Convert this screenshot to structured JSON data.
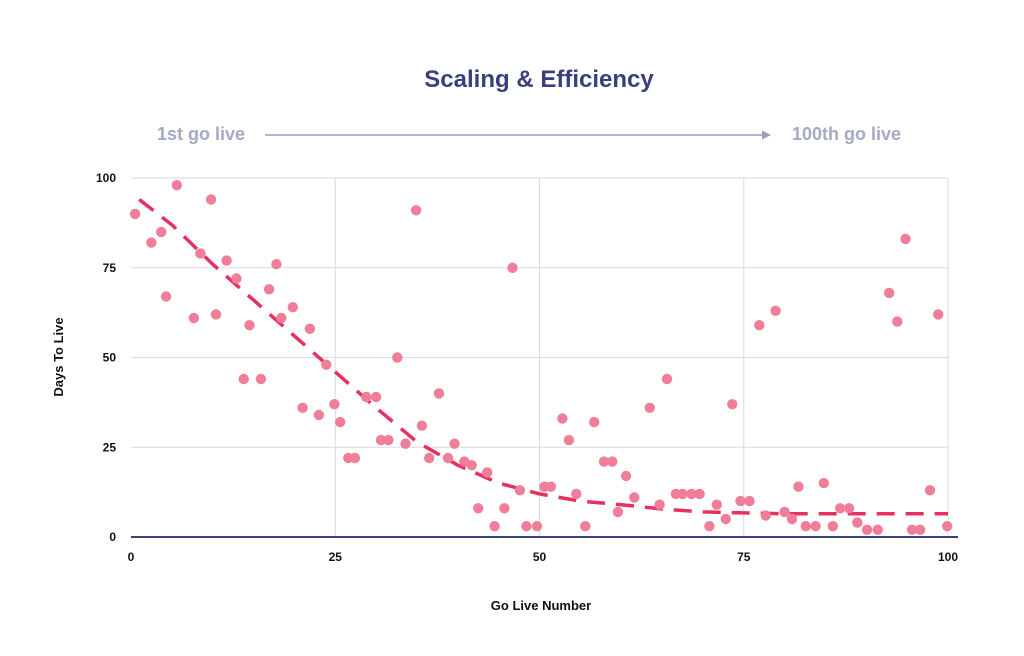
{
  "chart_data": {
    "type": "scatter",
    "title": "Scaling & Efficiency",
    "journey": {
      "start_label": "1st go live",
      "end_label": "100th go live"
    },
    "xlabel": "Go Live Number",
    "ylabel": "Days To Live",
    "xlim": [
      0,
      100
    ],
    "ylim": [
      0,
      100
    ],
    "xticks": [
      0,
      25,
      50,
      75,
      100
    ],
    "yticks": [
      0,
      25,
      50,
      75,
      100
    ],
    "grid": true,
    "series": [
      {
        "name": "Go lives",
        "kind": "scatter",
        "x": [
          0.5,
          2.5,
          3.7,
          4.3,
          5.6,
          7.7,
          8.5,
          9.8,
          10.4,
          11.7,
          12.9,
          13.8,
          14.5,
          15.9,
          16.9,
          17.8,
          18.4,
          19.8,
          21.0,
          21.9,
          23.0,
          23.9,
          24.9,
          25.6,
          26.6,
          27.4,
          28.8,
          30.0,
          30.6,
          31.5,
          32.6,
          33.6,
          34.9,
          35.6,
          36.5,
          37.7,
          38.8,
          39.6,
          40.8,
          41.7,
          42.5,
          43.6,
          44.5,
          45.7,
          46.7,
          47.6,
          48.4,
          49.7,
          50.6,
          51.4,
          52.8,
          53.6,
          54.5,
          55.6,
          56.7,
          57.9,
          58.9,
          59.6,
          60.6,
          61.6,
          63.5,
          64.7,
          65.6,
          66.7,
          67.5,
          68.6,
          69.6,
          70.8,
          71.7,
          72.8,
          73.6,
          74.6,
          75.7,
          76.9,
          77.7,
          78.9,
          80.0,
          80.9,
          81.7,
          82.6,
          83.8,
          84.8,
          85.9,
          86.8,
          87.9,
          88.9,
          90.1,
          91.4,
          92.8,
          93.8,
          94.8,
          95.6,
          96.6,
          97.8,
          98.8,
          99.9
        ],
        "y": [
          90,
          82,
          85,
          67,
          98,
          61,
          79,
          94,
          62,
          77,
          72,
          44,
          59,
          44,
          69,
          76,
          61,
          64,
          36,
          58,
          34,
          48,
          37,
          32,
          22,
          22,
          39,
          39,
          27,
          27,
          50,
          26,
          91,
          31,
          22,
          40,
          22,
          26,
          21,
          20,
          8,
          18,
          3,
          8,
          75,
          13,
          3,
          3,
          14,
          14,
          33,
          27,
          12,
          3,
          32,
          21,
          21,
          7,
          17,
          11,
          36,
          9,
          44,
          12,
          12,
          12,
          12,
          3,
          9,
          5,
          37,
          10,
          10,
          59,
          6,
          63,
          7,
          5,
          14,
          3,
          3,
          15,
          3,
          8,
          8,
          4,
          2,
          2,
          68,
          60,
          83,
          2,
          2,
          13,
          62,
          3
        ],
        "color": "#f07e99"
      },
      {
        "name": "Trend",
        "kind": "line",
        "style": "dashed",
        "x": [
          1,
          5,
          10,
          15,
          20,
          25,
          30,
          35,
          40,
          45,
          50,
          55,
          60,
          65,
          70,
          75,
          80,
          85,
          90,
          95,
          100
        ],
        "y": [
          94,
          87,
          76,
          66,
          56,
          46,
          36,
          26.5,
          20,
          15,
          12,
          10,
          9,
          7.8,
          7,
          6.7,
          6.5,
          6.5,
          6.5,
          6.5,
          6.5
        ],
        "color": "#e8305e"
      }
    ]
  },
  "colors": {
    "title": "#3b3f80",
    "journey_text": "#a5a9c4",
    "arrow": "#9a9ebd",
    "grid": "#d8dae8",
    "axis": "#3b3f80",
    "tick_text": "#111111"
  }
}
